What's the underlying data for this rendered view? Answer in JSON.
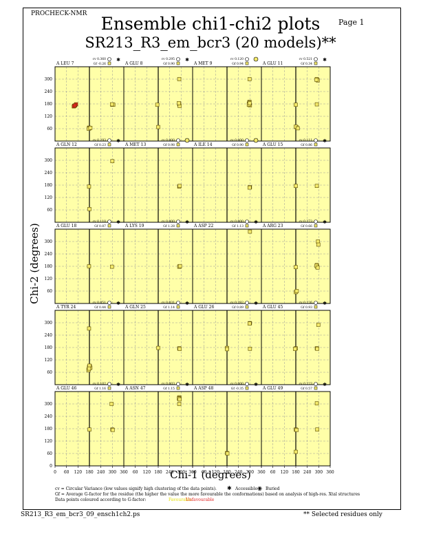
{
  "program": "PROCHECK-NMR",
  "page_label": "Page  1",
  "title": "Ensemble chi1-chi2 plots",
  "subtitle": "SR213_R3_em_bcr3 (20 models)**",
  "footer_file": "SR213_R3_em_bcr3_09_ensch1ch2.ps",
  "footer_note": "** Selected residues only",
  "footnotes": {
    "cv": "cv = Circular Variance (low values signify high clustering of the data points).",
    "gf": "Gf = Average G-factor for the residue (the higher the value the more favourable the conformations) based on analysis of high-res. Xtal structures",
    "colour": "Data points coloured according to G-factor:",
    "favourable": "Favourable",
    "unfavourable": "Unfavourable",
    "accessible": "Accessible",
    "buried": "Buried"
  },
  "colors": {
    "panel_bg": "#ffffa8",
    "point": "#f2e86a",
    "point_border": "#5a4a00",
    "unfavourable": "#e02020",
    "grid": "#999999"
  },
  "chart_data": {
    "type": "scatter",
    "xlabel": "Chi-1 (degrees)",
    "ylabel": "Chi-2 (degrees)",
    "xlim": [
      0,
      360
    ],
    "ylim": [
      0,
      360
    ],
    "xticks": [
      0,
      60,
      120,
      180,
      240,
      300,
      360
    ],
    "yticks": [
      60,
      120,
      180,
      240,
      300
    ],
    "grid": true,
    "panels": [
      {
        "residue": "A LEU 7",
        "cv": "cv 0.360",
        "gf": "Gf -0.26",
        "access": "accessible",
        "points": [
          [
            300,
            176
          ],
          [
            305,
            176
          ],
          [
            298,
            178
          ],
          [
            178,
            65
          ],
          [
            180,
            62
          ],
          [
            176,
            60
          ],
          [
            185,
            64
          ],
          [
            100,
            170
          ],
          [
            105,
            173
          ],
          [
            110,
            178
          ],
          [
            98,
            168
          ],
          [
            103,
            172
          ]
        ],
        "unfav": [
          [
            100,
            170
          ],
          [
            105,
            173
          ],
          [
            110,
            178
          ],
          [
            98,
            168
          ],
          [
            103,
            172
          ]
        ]
      },
      {
        "residue": "A GLU 8",
        "cv": "cv 0.295",
        "gf": "Gf 0.90",
        "access": "accessible",
        "points": [
          [
            290,
            300
          ],
          [
            175,
            176
          ],
          [
            290,
            178
          ],
          [
            292,
            170
          ],
          [
            288,
            184
          ],
          [
            180,
            68
          ]
        ],
        "unfav": []
      },
      {
        "residue": "A MET 9",
        "cv": "cv 0.120",
        "gf": "Gf 0.94",
        "access": "buried",
        "points": [
          [
            298,
            300
          ],
          [
            295,
            180
          ],
          [
            298,
            190
          ],
          [
            300,
            173
          ],
          [
            296,
            186
          ],
          [
            294,
            176
          ],
          [
            298,
            183
          ]
        ],
        "unfav": []
      },
      {
        "residue": "A GLU 11",
        "cv": "cv 0.521",
        "gf": "Gf 0.34",
        "access": "accessible",
        "points": [
          [
            290,
            300
          ],
          [
            295,
            294
          ],
          [
            288,
            297
          ],
          [
            180,
            176
          ],
          [
            290,
            178
          ],
          [
            185,
            66
          ],
          [
            180,
            70
          ],
          [
            190,
            62
          ]
        ],
        "unfav": []
      },
      {
        "residue": "A GLN 12",
        "cv": "cv 0.293",
        "gf": "Gf 0.23",
        "access": "accessible",
        "points": [
          [
            300,
            296
          ],
          [
            178,
            173
          ],
          [
            180,
            64
          ]
        ],
        "unfav": []
      },
      {
        "residue": "A MET 13",
        "cv": "cv 0.000",
        "gf": "Gf 0.98",
        "access": "buried",
        "points": [
          [
            290,
            173
          ],
          [
            292,
            176
          ]
        ],
        "unfav": []
      },
      {
        "residue": "A ILE 14",
        "cv": "cv 0.000",
        "gf": "Gf 0.90",
        "access": "buried",
        "points": [
          [
            300,
            170
          ],
          [
            298,
            168
          ]
        ],
        "unfav": []
      },
      {
        "residue": "A GLU 15",
        "cv": "cv 0.111",
        "gf": "Gf 0.86",
        "access": "accessible",
        "points": [
          [
            180,
            176
          ],
          [
            290,
            176
          ]
        ],
        "unfav": []
      },
      {
        "residue": "A GLU 18",
        "cv": "cv 0.110",
        "gf": "Gf 0.87",
        "access": "accessible",
        "points": [
          [
            178,
            180
          ],
          [
            298,
            178
          ]
        ],
        "unfav": []
      },
      {
        "residue": "A LYS 19",
        "cv": "cv 0.000",
        "gf": "Gf 1.28",
        "access": "accessible",
        "points": [
          [
            292,
            180
          ],
          [
            290,
            178
          ],
          [
            294,
            181
          ]
        ],
        "unfav": []
      },
      {
        "residue": "A ASP 22",
        "cv": "cv 0.000",
        "gf": "Gf 1.13",
        "access": "accessible",
        "points": [
          [
            300,
            348
          ]
        ],
        "unfav": []
      },
      {
        "residue": "A ARG 23",
        "cv": "cv 0.273",
        "gf": "Gf 0.66",
        "access": "accessible",
        "points": [
          [
            296,
            300
          ],
          [
            298,
            285
          ],
          [
            290,
            186
          ],
          [
            292,
            178
          ],
          [
            288,
            182
          ],
          [
            294,
            174
          ],
          [
            180,
            176
          ],
          [
            180,
            55
          ],
          [
            185,
            60
          ]
        ],
        "unfav": []
      },
      {
        "residue": "A TYR 24",
        "cv": "cv 0.051",
        "gf": "Gf 0.44",
        "access": "accessible",
        "points": [
          [
            178,
            272
          ],
          [
            180,
            80
          ],
          [
            178,
            86
          ],
          [
            176,
            75
          ],
          [
            182,
            90
          ],
          [
            185,
            82
          ],
          [
            175,
            70
          ],
          [
            180,
            92
          ],
          [
            178,
            78
          ]
        ],
        "unfav": []
      },
      {
        "residue": "A GLN 25",
        "cv": "cv 0.031",
        "gf": "Gf 1.14",
        "access": "accessible",
        "points": [
          [
            180,
            178
          ],
          [
            290,
            176
          ],
          [
            292,
            173
          ]
        ],
        "unfav": []
      },
      {
        "residue": "A GLU 26",
        "cv": "cv 0.282",
        "gf": "Gf 0.89",
        "access": "accessible",
        "points": [
          [
            300,
            298
          ],
          [
            298,
            296
          ],
          [
            180,
            178
          ],
          [
            180,
            172
          ],
          [
            300,
            174
          ]
        ],
        "unfav": []
      },
      {
        "residue": "A GLU 45",
        "cv": "cv 0.226",
        "gf": "Gf 0.93",
        "access": "accessible",
        "points": [
          [
            298,
            290
          ],
          [
            180,
            176
          ],
          [
            176,
            173
          ],
          [
            290,
            176
          ],
          [
            292,
            174
          ]
        ],
        "unfav": []
      },
      {
        "residue": "A GLU 46",
        "cv": "cv 0.102",
        "gf": "Gf 1.16",
        "access": "accessible",
        "points": [
          [
            296,
            300
          ],
          [
            180,
            176
          ],
          [
            300,
            176
          ],
          [
            302,
            174
          ]
        ],
        "unfav": []
      },
      {
        "residue": "A ASN 47",
        "cv": "cv 0.003",
        "gf": "Gf 1.15",
        "access": "accessible",
        "points": [
          [
            290,
            332
          ],
          [
            292,
            328
          ],
          [
            288,
            326
          ],
          [
            292,
            322
          ],
          [
            290,
            300
          ]
        ],
        "unfav": []
      },
      {
        "residue": "A ASP 48",
        "cv": "cv 0.000",
        "gf": "Gf -0.35",
        "access": "accessible",
        "points": [
          [
            180,
            62
          ],
          [
            182,
            60
          ]
        ],
        "unfav": []
      },
      {
        "residue": "A GLU 49",
        "cv": "cv 0.223",
        "gf": "Gf 0.57",
        "access": "accessible",
        "points": [
          [
            290,
            303
          ],
          [
            180,
            176
          ],
          [
            184,
            174
          ],
          [
            292,
            176
          ],
          [
            180,
            68
          ]
        ],
        "unfav": []
      }
    ]
  }
}
